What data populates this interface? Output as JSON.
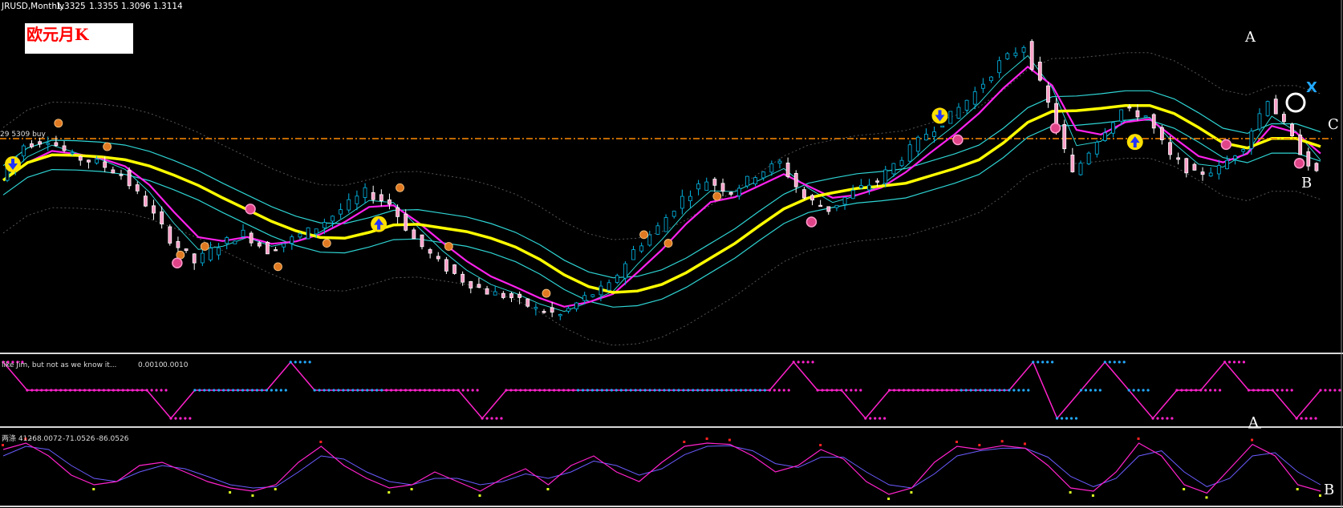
{
  "header": {
    "symbol_line": "JRUSD,Monthly",
    "ohlc": [
      "1.3325",
      "1.3355",
      "1.3096",
      "1.3114"
    ]
  },
  "title_label": "欧元月K",
  "price_marker_label": "29 5309 buy",
  "wave_labels": {
    "a_top": "A",
    "x": "X",
    "c": "C",
    "b_main": "B",
    "a_panel2": "A",
    "b_panel3": "B"
  },
  "indicator1": {
    "title": "like Jim, but not as we know it...",
    "values": [
      "0.0010",
      "0.0010"
    ]
  },
  "indicator2": {
    "title": "两涤 412",
    "values": [
      "-68.0072",
      "-71.0526",
      "-86.0526"
    ]
  },
  "colors": {
    "background": "#000000",
    "bull_candle": "#00b7e6",
    "bear_candle": "#ffffff",
    "bear_candle_body": "#ff9ec8",
    "ma_yellow": "#ffff00",
    "ma_magenta": "#ff22ee",
    "ma_cyan": "#2fd3d3",
    "price_line": "#ff8a00",
    "indicator_pink": "#ff22cc",
    "indicator_blue": "#22aaff",
    "label_text": "#ffffff",
    "x_label": "#22aaff",
    "title_text": "#ff0000",
    "title_box": "#ffffff"
  },
  "chart_data": [
    {
      "type": "line",
      "panel": "price",
      "symbol": "EURUSD",
      "timeframe": "Monthly",
      "series": [
        {
          "values": [
            1.32,
            1.38,
            1.39,
            1.36,
            1.35,
            1.33,
            1.28,
            1.22,
            1.18,
            1.21,
            1.23,
            1.2,
            1.22,
            1.24,
            1.27,
            1.3,
            1.28,
            1.22,
            1.18,
            1.15,
            1.13,
            1.12,
            1.1,
            1.09,
            1.12,
            1.14,
            1.2,
            1.24,
            1.29,
            1.32,
            1.3,
            1.33,
            1.35,
            1.29,
            1.27,
            1.3,
            1.32,
            1.36,
            1.4,
            1.43,
            1.47,
            1.52,
            1.55,
            1.45,
            1.33,
            1.39,
            1.44,
            1.43,
            1.36,
            1.33,
            1.34,
            1.38,
            1.46,
            1.39,
            1.33
          ]
        }
      ]
    },
    {
      "type": "line",
      "panel": "indicator1",
      "series": [
        {
          "values": [
            0.95,
            0.5,
            0.5,
            0.5,
            0.5,
            0.5,
            0.5,
            0.05,
            0.5,
            0.5,
            0.5,
            0.5,
            0.95,
            0.5,
            0.5,
            0.5,
            0.5,
            0.5,
            0.5,
            0.5,
            0.05,
            0.5,
            0.5,
            0.5,
            0.5,
            0.5,
            0.5,
            0.5,
            0.5,
            0.5,
            0.5,
            0.5,
            0.5,
            0.95,
            0.5,
            0.5,
            0.05,
            0.5,
            0.5,
            0.5,
            0.5,
            0.5,
            0.5,
            0.95,
            0.05,
            0.5,
            0.95,
            0.5,
            0.05,
            0.5,
            0.5,
            0.95,
            0.5,
            0.5,
            0.05,
            0.5
          ]
        }
      ]
    },
    {
      "type": "line",
      "panel": "indicator2",
      "series": [
        {
          "values": [
            0.8,
            0.9,
            0.7,
            0.4,
            0.25,
            0.3,
            0.55,
            0.6,
            0.45,
            0.3,
            0.2,
            0.15,
            0.25,
            0.6,
            0.85,
            0.55,
            0.35,
            0.2,
            0.25,
            0.45,
            0.3,
            0.15,
            0.35,
            0.5,
            0.25,
            0.55,
            0.7,
            0.45,
            0.3,
            0.6,
            0.85,
            0.9,
            0.88,
            0.7,
            0.45,
            0.55,
            0.8,
            0.65,
            0.3,
            0.1,
            0.2,
            0.6,
            0.85,
            0.8,
            0.86,
            0.82,
            0.55,
            0.2,
            0.15,
            0.45,
            0.9,
            0.7,
            0.25,
            0.12,
            0.5,
            0.88,
            0.7,
            0.25,
            0.15
          ]
        },
        {
          "values": [
            0.7,
            0.85,
            0.8,
            0.55,
            0.35,
            0.3,
            0.45,
            0.55,
            0.5,
            0.38,
            0.25,
            0.2,
            0.22,
            0.45,
            0.7,
            0.65,
            0.45,
            0.3,
            0.25,
            0.35,
            0.35,
            0.25,
            0.3,
            0.42,
            0.35,
            0.45,
            0.62,
            0.55,
            0.4,
            0.5,
            0.72,
            0.85,
            0.86,
            0.78,
            0.58,
            0.52,
            0.68,
            0.68,
            0.45,
            0.25,
            0.2,
            0.42,
            0.7,
            0.78,
            0.82,
            0.82,
            0.68,
            0.38,
            0.22,
            0.35,
            0.7,
            0.78,
            0.45,
            0.22,
            0.35,
            0.7,
            0.75,
            0.45,
            0.25
          ]
        }
      ]
    }
  ]
}
